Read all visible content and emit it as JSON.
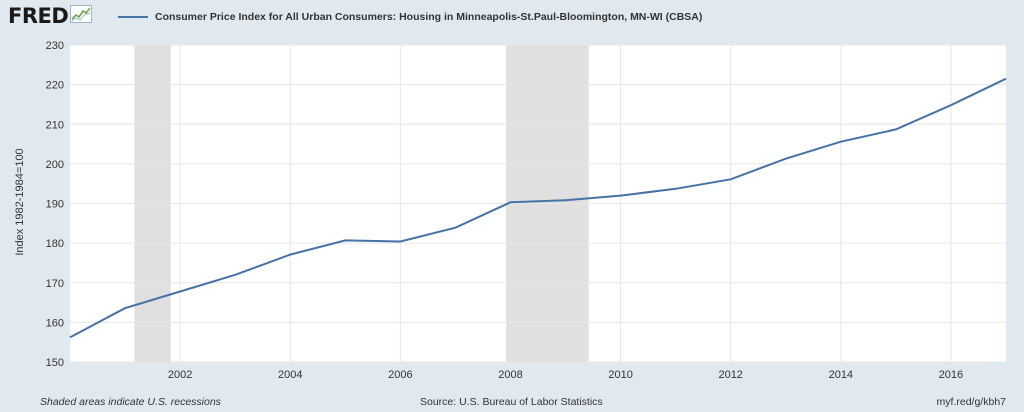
{
  "logo": {
    "text": "FRED",
    "icon": "chart-line-icon"
  },
  "chart_data": {
    "type": "line",
    "title": "",
    "xlabel": "",
    "ylabel": "Index 1982-1984=100",
    "xlim": [
      2000,
      2017
    ],
    "ylim": [
      150,
      230
    ],
    "grid": true,
    "legend_position": "top-left",
    "y_ticks": [
      150,
      160,
      170,
      180,
      190,
      200,
      210,
      220,
      230
    ],
    "x_ticks": [
      2002,
      2004,
      2006,
      2008,
      2010,
      2012,
      2014,
      2016
    ],
    "recessions": [
      [
        2001.17,
        2001.83
      ],
      [
        2007.92,
        2009.42
      ]
    ],
    "series": [
      {
        "name": "Consumer Price Index for All Urban Consumers: Housing in Minneapolis-St.Paul-Bloomington, MN-WI (CBSA)",
        "color": "#4572a7",
        "x": [
          2000,
          2001,
          2002,
          2003,
          2004,
          2005,
          2006,
          2007,
          2008,
          2009,
          2010,
          2011,
          2012,
          2013,
          2014,
          2015,
          2016,
          2017
        ],
        "values": [
          156.2,
          163.6,
          167.8,
          172.0,
          177.1,
          180.7,
          180.4,
          183.9,
          190.3,
          190.8,
          192.0,
          193.7,
          196.1,
          201.3,
          205.6,
          208.7,
          214.8,
          221.5
        ]
      }
    ]
  },
  "footer": {
    "note": "Shaded areas indicate U.S. recessions",
    "source": "Source: U.S. Bureau of Labor Statistics",
    "link": "myf.red/g/kbh7"
  },
  "colors": {
    "background": "#e1e9f0",
    "plot_background": "#ffffff",
    "recession_shade": "#e0e0e0",
    "grid": "#e6e6e6"
  }
}
